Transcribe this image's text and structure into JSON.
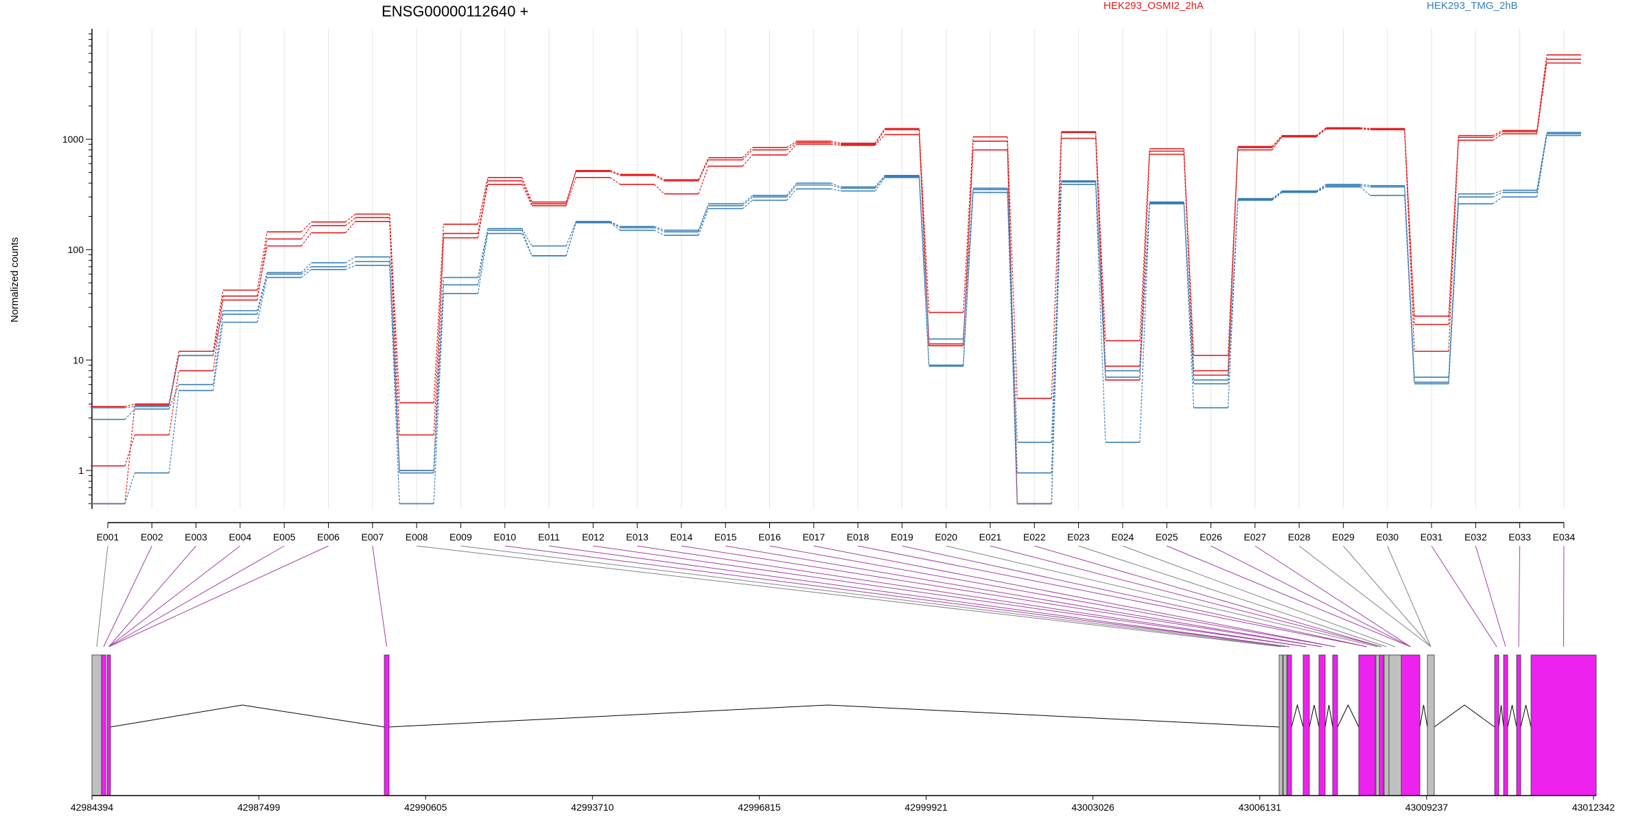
{
  "chart_data": {
    "type": "line",
    "title": "ENSG00000112640 +",
    "ylabel": "Normalized counts",
    "yscale": "log",
    "ylim": [
      0.5,
      9000
    ],
    "y_ticks": [
      {
        "value": 1,
        "label": "1"
      },
      {
        "value": 10,
        "label": "10"
      },
      {
        "value": 100,
        "label": "100"
      },
      {
        "value": 1000,
        "label": "1000"
      }
    ],
    "categories": [
      "E001",
      "E002",
      "E003",
      "E004",
      "E005",
      "E006",
      "E007",
      "E008",
      "E009",
      "E010",
      "E011",
      "E012",
      "E013",
      "E014",
      "E015",
      "E016",
      "E017",
      "E018",
      "E019",
      "E020",
      "E021",
      "E022",
      "E023",
      "E024",
      "E025",
      "E026",
      "E027",
      "E028",
      "E029",
      "E030",
      "E031",
      "E032",
      "E033",
      "E034"
    ],
    "legend": [
      {
        "label": "HEK293_OSMI2_2hA",
        "color": "#e31a1c"
      },
      {
        "label": "HEK293_TMG_2hB",
        "color": "#377eb8"
      }
    ],
    "series": [
      {
        "group": "HEK293_OSMI2_2hA",
        "color": "#e31a1c",
        "values": [
          3.8,
          4.0,
          12,
          43,
          145,
          178,
          210,
          4.1,
          170,
          450,
          270,
          520,
          480,
          430,
          680,
          840,
          960,
          920,
          1250,
          27,
          1050,
          4.5,
          1170,
          15,
          820,
          11,
          860,
          1080,
          1270,
          1250,
          25,
          1080,
          1200,
          5800
        ]
      },
      {
        "group": "HEK293_OSMI2_2hA",
        "color": "#e31a1c",
        "values": [
          1.1,
          2.1,
          8,
          35,
          125,
          165,
          195,
          2.1,
          140,
          420,
          260,
          510,
          470,
          420,
          650,
          800,
          930,
          900,
          1220,
          14,
          960,
          0.5,
          1150,
          8.8,
          780,
          8,
          840,
          1060,
          1250,
          1240,
          12,
          1040,
          1170,
          5300
        ]
      },
      {
        "group": "HEK293_OSMI2_2hA",
        "color": "#e31a1c",
        "values": [
          0.5,
          3.9,
          11,
          38,
          108,
          142,
          180,
          1.0,
          128,
          390,
          250,
          450,
          390,
          320,
          570,
          720,
          900,
          880,
          1100,
          13.5,
          800,
          0.5,
          1020,
          6.6,
          730,
          7.3,
          800,
          1050,
          1240,
          1220,
          21,
          980,
          1120,
          4900
        ]
      },
      {
        "group": "HEK293_TMG_2hB",
        "color": "#377eb8",
        "values": [
          3.7,
          3.8,
          11,
          28,
          62,
          76,
          86,
          1.0,
          56,
          155,
          108,
          180,
          162,
          150,
          260,
          310,
          400,
          370,
          470,
          15.5,
          360,
          1.8,
          420,
          8,
          270,
          6.6,
          290,
          340,
          390,
          380,
          7,
          320,
          345,
          1150
        ]
      },
      {
        "group": "HEK293_TMG_2hB",
        "color": "#377eb8",
        "values": [
          2.9,
          3.6,
          6,
          26,
          60,
          70,
          78,
          0.95,
          48,
          150,
          88,
          178,
          158,
          145,
          250,
          300,
          385,
          360,
          460,
          9,
          350,
          0.95,
          410,
          7,
          265,
          6.1,
          285,
          335,
          380,
          370,
          6.3,
          300,
          330,
          1120
        ]
      },
      {
        "group": "HEK293_TMG_2hB",
        "color": "#377eb8",
        "values": [
          0.5,
          0.95,
          5.3,
          22,
          56,
          66,
          72,
          0.5,
          40,
          140,
          88,
          175,
          150,
          135,
          235,
          280,
          355,
          340,
          450,
          8.8,
          330,
          0.5,
          390,
          1.8,
          260,
          3.7,
          280,
          330,
          370,
          310,
          6.1,
          260,
          300,
          1080
        ]
      }
    ]
  },
  "gene_model": {
    "coordinate_labels": [
      "42984394",
      "42987499",
      "42990605",
      "42993710",
      "42996815",
      "42999921",
      "43003026",
      "43006131",
      "43009237",
      "43012342"
    ],
    "colors": {
      "tested_exon": "#ee22ee",
      "untested_exon": "#c0c0c0",
      "connector": "#a040a0",
      "connector_untested": "#808080"
    }
  }
}
